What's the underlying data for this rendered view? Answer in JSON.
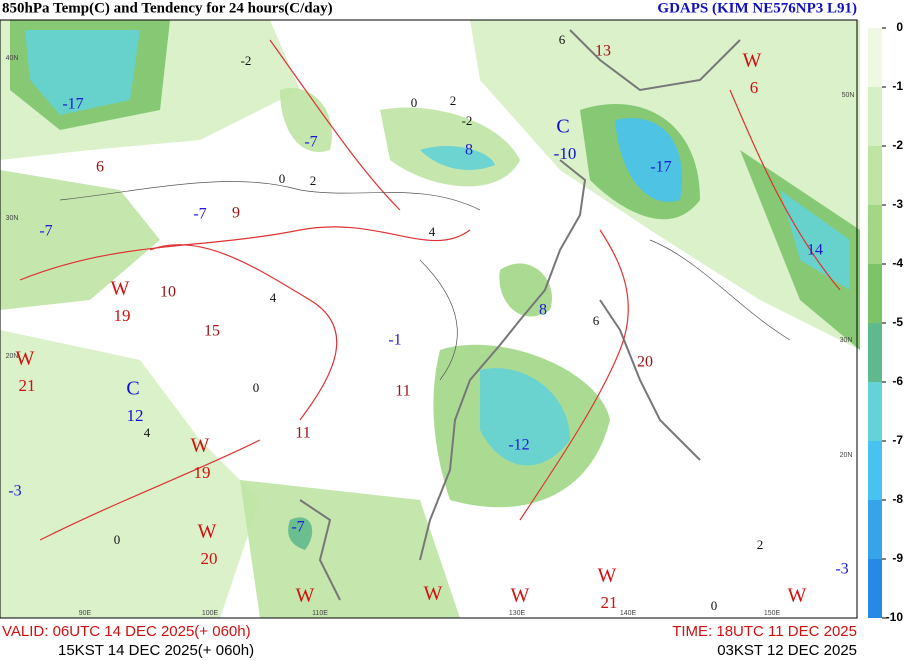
{
  "header": {
    "title": "850hPa Temp(C) and Tendency for 24 hours(C/day)",
    "model": "GDAPS (KIM NE576NP3 L91)"
  },
  "footer": {
    "valid_utc": "VALID: 06UTC 14 DEC 2025(+ 060h)",
    "valid_kst": "15KST 14 DEC 2025(+ 060h)",
    "time_utc": "TIME: 18UTC 11 DEC 2025",
    "time_kst": "03KST 12 DEC 2025"
  },
  "colorbar": {
    "ticks": [
      0,
      -1,
      -2,
      -3,
      -4,
      -5,
      -6,
      -7,
      -8,
      -9,
      -10
    ],
    "colors": [
      "#eef8e2",
      "#d6efc4",
      "#bfe4a4",
      "#a2d786",
      "#7dc36a",
      "#5fb98c",
      "#64d2d6",
      "#48c2ef",
      "#36a4e6",
      "#2888e6"
    ]
  },
  "centers": [
    {
      "symbol": "W",
      "value": 6
    },
    {
      "symbol": "C",
      "value": -10
    },
    {
      "symbol": "W",
      "value": 19
    },
    {
      "symbol": "W",
      "value": 21
    },
    {
      "symbol": "C",
      "value": 12
    },
    {
      "symbol": "W",
      "value": 19
    },
    {
      "symbol": "W",
      "value": 20
    },
    {
      "symbol": "W",
      "value": 21
    },
    {
      "symbol": "W"
    },
    {
      "symbol": "W"
    },
    {
      "symbol": "W"
    },
    {
      "symbol": "W"
    }
  ],
  "label_colors": {
    "center_w": "#d01010",
    "center_c": "#1010d0",
    "cold": "#1a1ad8",
    "tendency": "#a01010",
    "contour": "#111111"
  },
  "cold_labels": [
    -17,
    -7,
    -7,
    -7,
    8,
    -17,
    14,
    8,
    -1,
    -12,
    -7,
    -3,
    -3
  ],
  "tendency_labels": [
    6,
    9,
    10,
    15,
    11,
    11,
    20,
    13
  ],
  "contour_labels": [
    0,
    2,
    -2,
    2,
    0,
    4,
    0,
    4,
    0,
    2,
    0,
    6,
    -2,
    4,
    6
  ],
  "geo_labels": [
    "40N",
    "30N",
    "20N",
    "50N",
    "30N",
    "20N",
    "90E",
    "100E",
    "110E",
    "130E",
    "140E",
    "150E"
  ]
}
